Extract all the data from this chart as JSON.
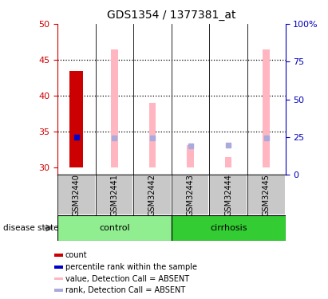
{
  "title": "GDS1354 / 1377381_at",
  "samples": [
    "GSM32440",
    "GSM32441",
    "GSM32442",
    "GSM32443",
    "GSM32444",
    "GSM32445"
  ],
  "ylim_left": [
    29,
    50
  ],
  "ylim_right": [
    0,
    100
  ],
  "yticks_left": [
    30,
    35,
    40,
    45,
    50
  ],
  "yticks_right": [
    0,
    25,
    50,
    75,
    100
  ],
  "ytick_labels_right": [
    "0",
    "25",
    "50",
    "75",
    "100%"
  ],
  "red_bars": {
    "GSM32440": [
      30,
      43.5
    ],
    "GSM32441": null,
    "GSM32442": null,
    "GSM32443": null,
    "GSM32444": null,
    "GSM32445": null
  },
  "blue_squares": {
    "GSM32440": 34.2,
    "GSM32441": null,
    "GSM32442": null,
    "GSM32443": null,
    "GSM32444": null,
    "GSM32445": null
  },
  "pink_bars": {
    "GSM32440": null,
    "GSM32441": [
      30,
      46.5
    ],
    "GSM32442": [
      30,
      39.0
    ],
    "GSM32443": [
      30,
      33.2
    ],
    "GSM32444": [
      30,
      31.5
    ],
    "GSM32445": [
      30,
      46.5
    ]
  },
  "light_blue_squares": {
    "GSM32440": null,
    "GSM32441": 34.1,
    "GSM32442": 34.1,
    "GSM32443": 33.0,
    "GSM32444": 33.2,
    "GSM32445": 34.1
  },
  "red_bar_width": 0.35,
  "pink_bar_width": 0.18,
  "colors": {
    "red": "#CC0000",
    "blue": "#0000CC",
    "pink": "#FFB6C1",
    "light_blue": "#AAAADD",
    "left_axis": "#CC0000",
    "right_axis": "#0000BB",
    "sample_bg": "#C8C8C8",
    "control_bg": "#90EE90",
    "cirrhosis_bg": "#33CC33"
  },
  "control_samples": [
    0,
    1,
    2
  ],
  "cirrhosis_samples": [
    3,
    4,
    5
  ],
  "legend_items": [
    {
      "color": "#CC0000",
      "label": "count"
    },
    {
      "color": "#0000CC",
      "label": "percentile rank within the sample"
    },
    {
      "color": "#FFB6C1",
      "label": "value, Detection Call = ABSENT"
    },
    {
      "color": "#AAAADD",
      "label": "rank, Detection Call = ABSENT"
    }
  ]
}
